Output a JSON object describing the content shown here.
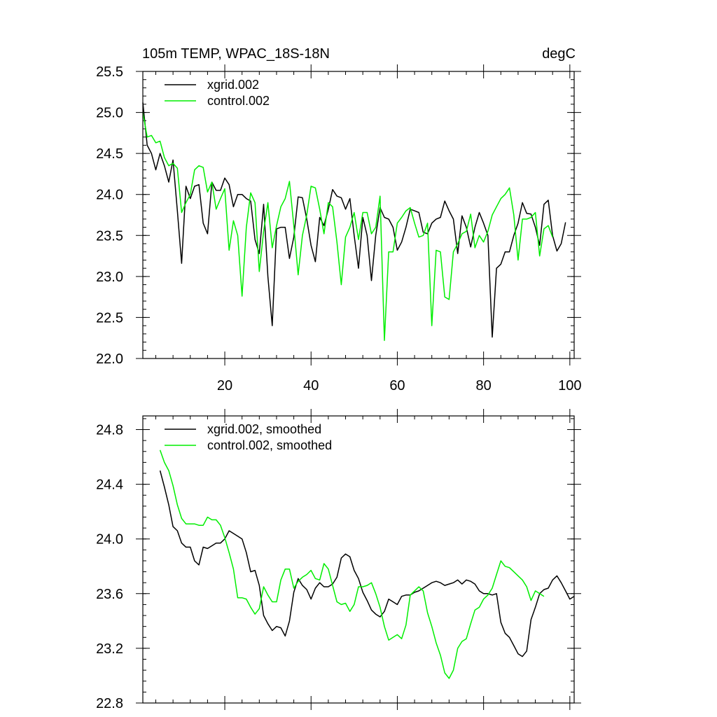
{
  "colors": {
    "xgrid": "#000000",
    "control": "#00ee00"
  },
  "chart_data": [
    {
      "type": "line",
      "title_left": "105m TEMP, WPAC_18S-18N",
      "title_right": "degC",
      "xlim": [
        1,
        101
      ],
      "ylim": [
        22.0,
        25.5
      ],
      "y_ticks": [
        "22.0",
        "22.5",
        "23.0",
        "23.5",
        "24.0",
        "24.5",
        "25.0",
        "25.5"
      ],
      "x_ticks": [
        "20",
        "40",
        "60",
        "80",
        "100"
      ],
      "legend": "top-left",
      "series": [
        {
          "name": "xgrid.002",
          "color": "#000000",
          "x_start": 1,
          "values": [
            25.12,
            24.6,
            24.5,
            24.3,
            24.5,
            24.35,
            24.15,
            24.42,
            23.8,
            23.16,
            24.1,
            23.95,
            24.1,
            24.12,
            23.65,
            23.52,
            24.15,
            24.05,
            24.05,
            24.2,
            24.12,
            23.85,
            24.0,
            24.0,
            23.95,
            23.92,
            23.45,
            23.28,
            23.88,
            23.0,
            22.4,
            23.58,
            23.6,
            23.6,
            23.22,
            23.48,
            23.97,
            23.96,
            23.7,
            23.38,
            23.18,
            23.72,
            23.62,
            23.82,
            24.06,
            23.98,
            23.96,
            23.82,
            23.95,
            23.5,
            23.1,
            23.72,
            23.5,
            22.95,
            23.5,
            23.84,
            23.72,
            23.7,
            23.6,
            23.32,
            23.42,
            23.6,
            23.82,
            23.8,
            23.78,
            23.54,
            23.52,
            23.65,
            23.7,
            23.72,
            23.92,
            23.8,
            23.7,
            23.28,
            23.74,
            23.6,
            23.36,
            23.6,
            23.78,
            23.65,
            23.5,
            22.26,
            23.1,
            23.15,
            23.3,
            23.3,
            23.5,
            23.65,
            23.9,
            23.77,
            23.76,
            23.6,
            23.38,
            23.88,
            23.93,
            23.5,
            23.31,
            23.4,
            23.66
          ]
        },
        {
          "name": "control.002",
          "color": "#00ee00",
          "x_start": 1,
          "values": [
            25.0,
            24.7,
            24.72,
            24.63,
            24.65,
            24.45,
            24.35,
            24.38,
            24.32,
            23.78,
            23.9,
            24.0,
            24.3,
            24.35,
            24.33,
            24.03,
            24.15,
            23.82,
            23.95,
            24.07,
            23.32,
            23.68,
            23.5,
            22.76,
            23.6,
            24.02,
            23.9,
            23.06,
            23.55,
            23.9,
            23.35,
            23.62,
            23.85,
            23.95,
            24.16,
            23.62,
            23.02,
            23.5,
            23.75,
            24.1,
            24.08,
            23.82,
            23.52,
            23.9,
            23.85,
            23.42,
            22.9,
            23.48,
            23.6,
            23.78,
            23.45,
            23.78,
            23.78,
            23.52,
            23.6,
            23.98,
            22.22,
            23.3,
            23.3,
            23.65,
            23.72,
            23.8,
            23.84,
            23.65,
            23.48,
            23.5,
            23.65,
            22.4,
            23.32,
            23.3,
            22.75,
            22.72,
            23.3,
            23.4,
            23.52,
            23.55,
            23.76,
            23.35,
            23.5,
            23.42,
            23.55,
            23.75,
            23.85,
            23.95,
            24.0,
            24.08,
            23.75,
            23.2,
            23.7,
            23.7,
            23.72,
            23.78,
            23.25,
            23.58,
            23.62,
            23.48
          ]
        }
      ]
    },
    {
      "type": "line",
      "xlim": [
        1,
        101
      ],
      "ylim": [
        22.8,
        24.9
      ],
      "y_ticks": [
        "22.8",
        "23.2",
        "23.6",
        "24.0",
        "24.4",
        "24.8"
      ],
      "legend": "top-left",
      "series": [
        {
          "name": "xgrid.002, smoothed",
          "color": "#000000",
          "x_start": 5,
          "values": [
            24.5,
            24.38,
            24.25,
            24.09,
            24.06,
            23.97,
            23.94,
            23.94,
            23.84,
            23.81,
            23.94,
            23.93,
            23.95,
            23.97,
            23.97,
            24.0,
            24.06,
            24.04,
            24.02,
            24.0,
            23.9,
            23.76,
            23.77,
            23.66,
            23.44,
            23.38,
            23.33,
            23.36,
            23.35,
            23.29,
            23.4,
            23.61,
            23.71,
            23.66,
            23.63,
            23.56,
            23.64,
            23.68,
            23.65,
            23.65,
            23.67,
            23.72,
            23.86,
            23.89,
            23.87,
            23.77,
            23.71,
            23.61,
            23.55,
            23.48,
            23.45,
            23.43,
            23.47,
            23.56,
            23.54,
            23.52,
            23.58,
            23.59,
            23.59,
            23.61,
            23.62,
            23.64,
            23.66,
            23.68,
            23.69,
            23.68,
            23.66,
            23.67,
            23.68,
            23.7,
            23.67,
            23.7,
            23.69,
            23.67,
            23.62,
            23.6,
            23.6,
            23.59,
            23.6,
            23.39,
            23.31,
            23.28,
            23.22,
            23.16,
            23.14,
            23.18,
            23.41,
            23.5,
            23.6,
            23.63,
            23.64,
            23.7,
            23.73,
            23.68,
            23.62,
            23.56,
            23.58
          ]
        },
        {
          "name": "control.002, smoothed",
          "color": "#00ee00",
          "x_start": 5,
          "values": [
            24.65,
            24.56,
            24.5,
            24.39,
            24.25,
            24.15,
            24.11,
            24.11,
            24.11,
            24.1,
            24.1,
            24.16,
            24.14,
            24.14,
            24.1,
            24.01,
            23.9,
            23.78,
            23.57,
            23.57,
            23.56,
            23.5,
            23.45,
            23.49,
            23.65,
            23.59,
            23.54,
            23.54,
            23.7,
            23.78,
            23.78,
            23.64,
            23.69,
            23.72,
            23.74,
            23.77,
            23.71,
            23.7,
            23.82,
            23.78,
            23.66,
            23.54,
            23.52,
            23.53,
            23.47,
            23.52,
            23.65,
            23.65,
            23.66,
            23.68,
            23.6,
            23.5,
            23.36,
            23.26,
            23.28,
            23.3,
            23.27,
            23.37,
            23.59,
            23.62,
            23.65,
            23.62,
            23.46,
            23.36,
            23.24,
            23.15,
            23.02,
            22.98,
            23.04,
            23.2,
            23.25,
            23.27,
            23.38,
            23.48,
            23.5,
            23.56,
            23.59,
            23.64,
            23.74,
            23.84,
            23.8,
            23.79,
            23.76,
            23.73,
            23.7,
            23.65,
            23.55,
            23.62,
            23.6,
            23.58
          ]
        }
      ]
    }
  ]
}
